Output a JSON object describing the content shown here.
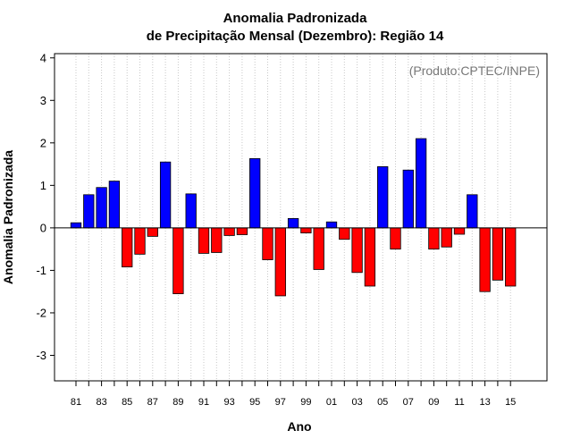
{
  "chart_data": {
    "type": "bar",
    "title": "Anomalia Padronizada",
    "subtitle": "de Precipitação Mensal (Dezembro): Região 14",
    "xlabel": "Ano",
    "ylabel": "Anomalia Padronizada",
    "annotation": "(Produto:CPTEC/INPE)",
    "ylim": [
      -3.6,
      4.1
    ],
    "yticks": [
      -3,
      -2,
      -1,
      0,
      1,
      2,
      3,
      4
    ],
    "grid": "vertical dotted",
    "x": [
      1981,
      1982,
      1983,
      1984,
      1985,
      1986,
      1987,
      1988,
      1989,
      1990,
      1991,
      1992,
      1993,
      1994,
      1995,
      1996,
      1997,
      1998,
      1999,
      2000,
      2001,
      2002,
      2003,
      2004,
      2005,
      2006,
      2007,
      2008,
      2009,
      2010,
      2011,
      2012,
      2013,
      2014,
      2015
    ],
    "xtick_labels": [
      "81",
      "",
      "83",
      "",
      "85",
      "",
      "87",
      "",
      "89",
      "",
      "91",
      "",
      "93",
      "",
      "95",
      "",
      "97",
      "",
      "99",
      "",
      "01",
      "",
      "03",
      "",
      "05",
      "",
      "07",
      "",
      "09",
      "",
      "11",
      "",
      "13",
      "",
      "15"
    ],
    "values": [
      0.12,
      0.78,
      0.95,
      1.1,
      -0.92,
      -0.62,
      -0.2,
      1.55,
      -1.55,
      0.8,
      -0.6,
      -0.58,
      -0.18,
      -0.16,
      1.63,
      -0.75,
      -1.6,
      0.22,
      -0.12,
      -0.98,
      0.14,
      -0.27,
      -1.05,
      -1.37,
      1.44,
      -0.5,
      1.36,
      2.1,
      -0.5,
      -0.45,
      -0.15,
      0.78,
      -1.5,
      -1.23,
      -1.37
    ],
    "positive_color": "#0000ff",
    "negative_color": "#ff0000"
  }
}
